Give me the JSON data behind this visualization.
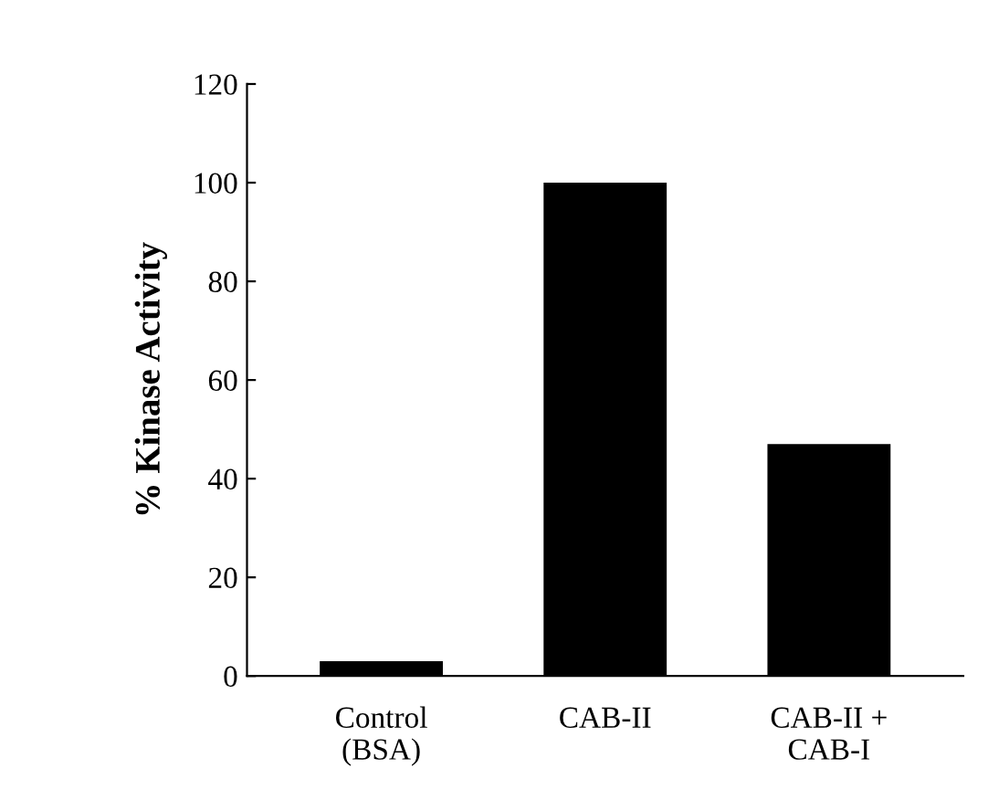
{
  "chart_data": {
    "type": "bar",
    "ylabel": "% Kinase Activity",
    "categories": [
      "Control\n(BSA)",
      "CAB-II",
      "CAB-II +\nCAB-I"
    ],
    "values": [
      3,
      100,
      47
    ],
    "color": "#000000",
    "ylim": [
      0,
      120
    ],
    "yticks": [
      0,
      20,
      40,
      60,
      80,
      100,
      120
    ],
    "grid": false
  }
}
